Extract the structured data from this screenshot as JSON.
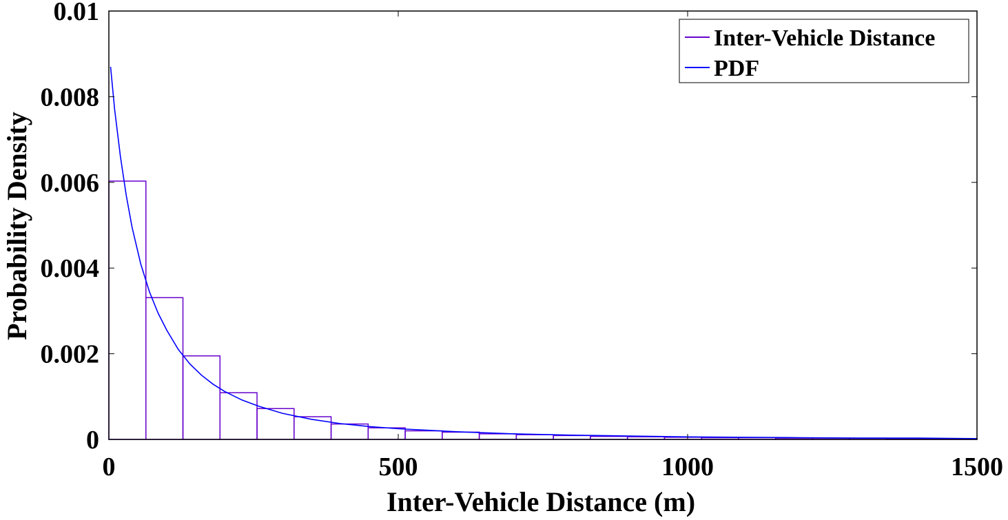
{
  "chart_data": {
    "type": "bar",
    "title": "",
    "xlabel": "Inter-Vehicle Distance (m)",
    "ylabel": "Probability Density",
    "xlim": [
      0,
      1500
    ],
    "ylim": [
      0,
      0.01
    ],
    "x_ticks": [
      "0",
      "500",
      "1000",
      "1500"
    ],
    "y_ticks": [
      "0",
      "0.002",
      "0.004",
      "0.006",
      "0.008",
      "0.01"
    ],
    "grid": false,
    "legend_position": "top-right",
    "histogram": {
      "name": "Inter-Vehicle Distance",
      "color": "#6600cc",
      "bin_edges": [
        0,
        64,
        128,
        192,
        256,
        320,
        384,
        448,
        512,
        576,
        640,
        704,
        768,
        832,
        896,
        960,
        1024,
        1088,
        1152,
        1216,
        1280,
        1344,
        1408,
        1472,
        1500
      ],
      "values": [
        0.00603,
        0.00331,
        0.00195,
        0.00109,
        0.00072,
        0.00053,
        0.00036,
        0.00027,
        0.0002,
        0.00017,
        0.00013,
        0.00011,
        9e-05,
        7e-05,
        6e-05,
        5e-05,
        4e-05,
        4e-05,
        3e-05,
        3e-05,
        3e-05,
        2e-05,
        2e-05,
        2e-05
      ]
    },
    "pdf": {
      "name": "PDF",
      "color": "#0000ff",
      "x": [
        3,
        10,
        20,
        30,
        40,
        55,
        70,
        85,
        100,
        120,
        140,
        160,
        180,
        200,
        230,
        260,
        300,
        350,
        400,
        450,
        500,
        600,
        700,
        800,
        900,
        1000,
        1100,
        1200,
        1300,
        1400,
        1500
      ],
      "y": [
        0.0087,
        0.0077,
        0.0066,
        0.0057,
        0.00496,
        0.0041,
        0.00345,
        0.00295,
        0.00255,
        0.0021,
        0.00176,
        0.0015,
        0.00129,
        0.00112,
        0.00092,
        0.00077,
        0.00061,
        0.00047,
        0.00037,
        0.0003,
        0.00025,
        0.00018,
        0.00013,
        0.0001,
        8e-05,
        6e-05,
        5e-05,
        4e-05,
        3e-05,
        3e-05,
        2e-05
      ]
    }
  }
}
